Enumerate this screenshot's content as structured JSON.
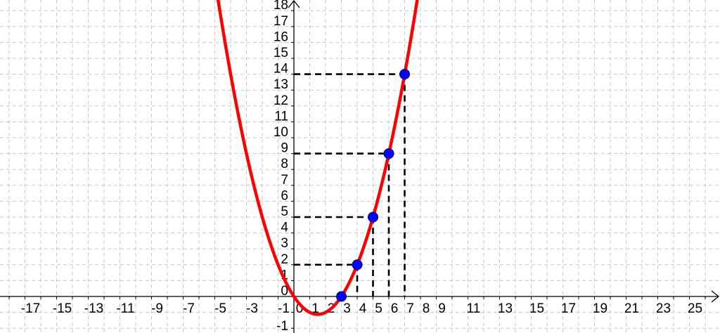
{
  "chart_data": {
    "type": "line",
    "title": "",
    "xlabel": "",
    "ylabel": "",
    "xlim": [
      -18.5,
      26.9
    ],
    "ylim": [
      -2.3,
      18.7
    ],
    "grid": true,
    "x_tick_labels": [
      "-17",
      "-15",
      "-13",
      "-11",
      "-9",
      "-7",
      "-5",
      "-3",
      "-1",
      "0",
      "1",
      "2",
      "3",
      "4",
      "5",
      "6",
      "7",
      "8",
      "9",
      "11",
      "13",
      "15",
      "17",
      "19",
      "21",
      "23",
      "25"
    ],
    "y_tick_labels": [
      "-1",
      "0",
      "1",
      "2",
      "3",
      "4",
      "5",
      "6",
      "7",
      "8",
      "9",
      "10",
      "11",
      "12",
      "13",
      "14",
      "15",
      "16",
      "17",
      "18"
    ],
    "curve": {
      "expression": "y = 0.5x^2 - 1.5x",
      "color": "#ff0000"
    },
    "points": [
      {
        "x": 3,
        "y": 0
      },
      {
        "x": 4,
        "y": 2
      },
      {
        "x": 5,
        "y": 5
      },
      {
        "x": 6,
        "y": 9
      },
      {
        "x": 7,
        "y": 14
      }
    ],
    "point_color": "#0000ff",
    "projection_lines": "dashed black from each point to both axes",
    "grid_color": "#c8c8c8"
  }
}
